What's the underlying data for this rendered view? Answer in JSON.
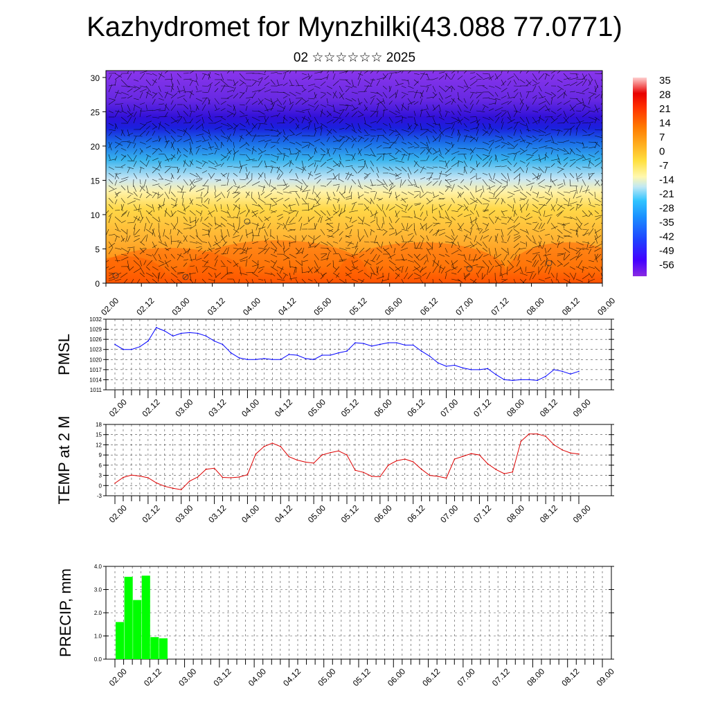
{
  "title": "Kazhydromet for Mynzhilki(43.088 77.0771)",
  "subtitle": "02 ☆☆☆☆☆☆ 2025",
  "colors": {
    "pmsl_line": "#0000ff",
    "temp_line": "#dd0000",
    "precip_bar": "#00ff00"
  },
  "chart_data": [
    {
      "type": "heatmap",
      "name": "vertical-cross-section",
      "x_ticks": [
        "02.00",
        "02.12",
        "03.00",
        "03.12",
        "04.00",
        "04.12",
        "05.00",
        "05.12",
        "06.00",
        "06.12",
        "07.00",
        "07.12",
        "08.00",
        "08.12",
        "09.00"
      ],
      "y_ticks": [
        "0",
        "5",
        "10",
        "15",
        "20",
        "25",
        "30"
      ],
      "ylim": [
        0,
        31
      ],
      "colorbar_labels": [
        "35",
        "28",
        "21",
        "14",
        "7",
        "0",
        "-7",
        "-14",
        "-21",
        "-28",
        "-35",
        "-42",
        "-49",
        "-56"
      ],
      "overlay": "wind barbs"
    },
    {
      "type": "line",
      "name": "pmsl",
      "ylabel": "PMSL",
      "ylim": [
        1011,
        1032
      ],
      "y_ticks": [
        "1011",
        "1014",
        "1017",
        "1020",
        "1023",
        "1026",
        "1029",
        "1032"
      ],
      "x_ticks": [
        "02.00",
        "02.12",
        "03.00",
        "03.12",
        "04.00",
        "04.12",
        "05.00",
        "05.12",
        "06.00",
        "06.12",
        "07.00",
        "07.12",
        "08.00",
        "08.12",
        "09.00"
      ],
      "x_step_hours": 3,
      "values": [
        1024.5,
        1023.0,
        1023.0,
        1023.8,
        1025.5,
        1029.5,
        1028.5,
        1027.0,
        1027.8,
        1028.0,
        1027.8,
        1027.0,
        1025.5,
        1024.5,
        1022.0,
        1020.5,
        1020.0,
        1020.0,
        1020.3,
        1020.0,
        1020.0,
        1021.5,
        1021.3,
        1020.3,
        1020.0,
        1021.3,
        1021.3,
        1022.0,
        1022.5,
        1025.0,
        1024.8,
        1024.0,
        1024.5,
        1025.0,
        1025.0,
        1024.3,
        1024.3,
        1022.5,
        1021.0,
        1019.0,
        1018.0,
        1018.3,
        1017.5,
        1017.0,
        1017.0,
        1017.3,
        1015.5,
        1014.0,
        1013.8,
        1014.0,
        1014.0,
        1013.8,
        1015.0,
        1017.0,
        1016.5,
        1015.7,
        1016.5
      ]
    },
    {
      "type": "line",
      "name": "temp",
      "ylabel": "TEMP at 2 M",
      "ylim": [
        -3,
        18
      ],
      "y_ticks": [
        "-3",
        "0",
        "3",
        "6",
        "9",
        "12",
        "15",
        "18"
      ],
      "x_ticks": [
        "02.00",
        "02.12",
        "03.00",
        "03.12",
        "04.00",
        "04.12",
        "05.00",
        "05.12",
        "06.00",
        "06.12",
        "07.00",
        "07.12",
        "08.00",
        "08.12",
        "09.00"
      ],
      "x_step_hours": 3,
      "values": [
        0.7,
        2.4,
        3.1,
        2.8,
        2.3,
        0.8,
        -0.2,
        -0.8,
        -1.2,
        1.3,
        2.5,
        4.8,
        5.1,
        2.4,
        2.3,
        2.5,
        3.2,
        9.3,
        11.5,
        12.5,
        11.5,
        8.5,
        7.5,
        6.9,
        6.6,
        9.0,
        9.7,
        10.2,
        9.0,
        4.5,
        3.9,
        2.7,
        2.6,
        6.0,
        7.3,
        7.8,
        7.0,
        4.8,
        3.0,
        2.7,
        2.2,
        7.8,
        8.6,
        9.4,
        9.0,
        6.4,
        4.7,
        3.5,
        4.0,
        13.0,
        15.2,
        15.2,
        14.5,
        12.0,
        10.5,
        9.6,
        9.3
      ]
    },
    {
      "type": "bar",
      "name": "precip",
      "ylabel": "PRECIP, mm",
      "ylim": [
        0,
        4
      ],
      "y_ticks": [
        "0.0",
        "1.0",
        "2.0",
        "3.0",
        "4.0"
      ],
      "x_ticks": [
        "02.00",
        "02.12",
        "03.00",
        "03.12",
        "04.00",
        "04.12",
        "05.00",
        "05.12",
        "06.00",
        "06.12",
        "07.00",
        "07.12",
        "08.00",
        "08.12",
        "09.00"
      ],
      "x_step_hours": 3,
      "values": [
        1.6,
        3.55,
        2.55,
        3.6,
        0.95,
        0.9
      ]
    }
  ]
}
